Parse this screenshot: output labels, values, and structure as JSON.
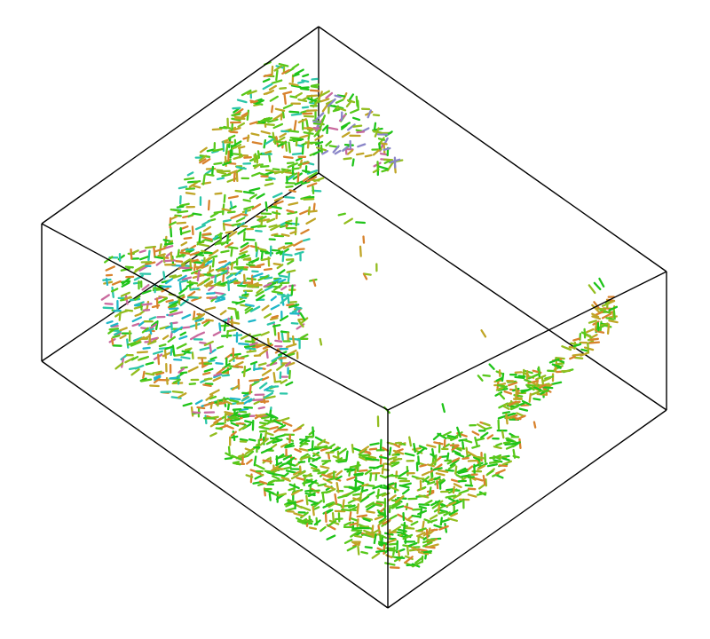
{
  "scene": {
    "background_color": "#ffffff",
    "box_edge_color": "#000000",
    "bounding_box": "wireframe",
    "glyph_type": "short line segments (vector/orientation glyphs)",
    "color_palette": [
      "#1fc41a",
      "#57c81b",
      "#93bd1f",
      "#c0a526",
      "#d8822c",
      "#2bc6a8",
      "#1fb7c9",
      "#8a86c8",
      "#c96a9e"
    ]
  }
}
